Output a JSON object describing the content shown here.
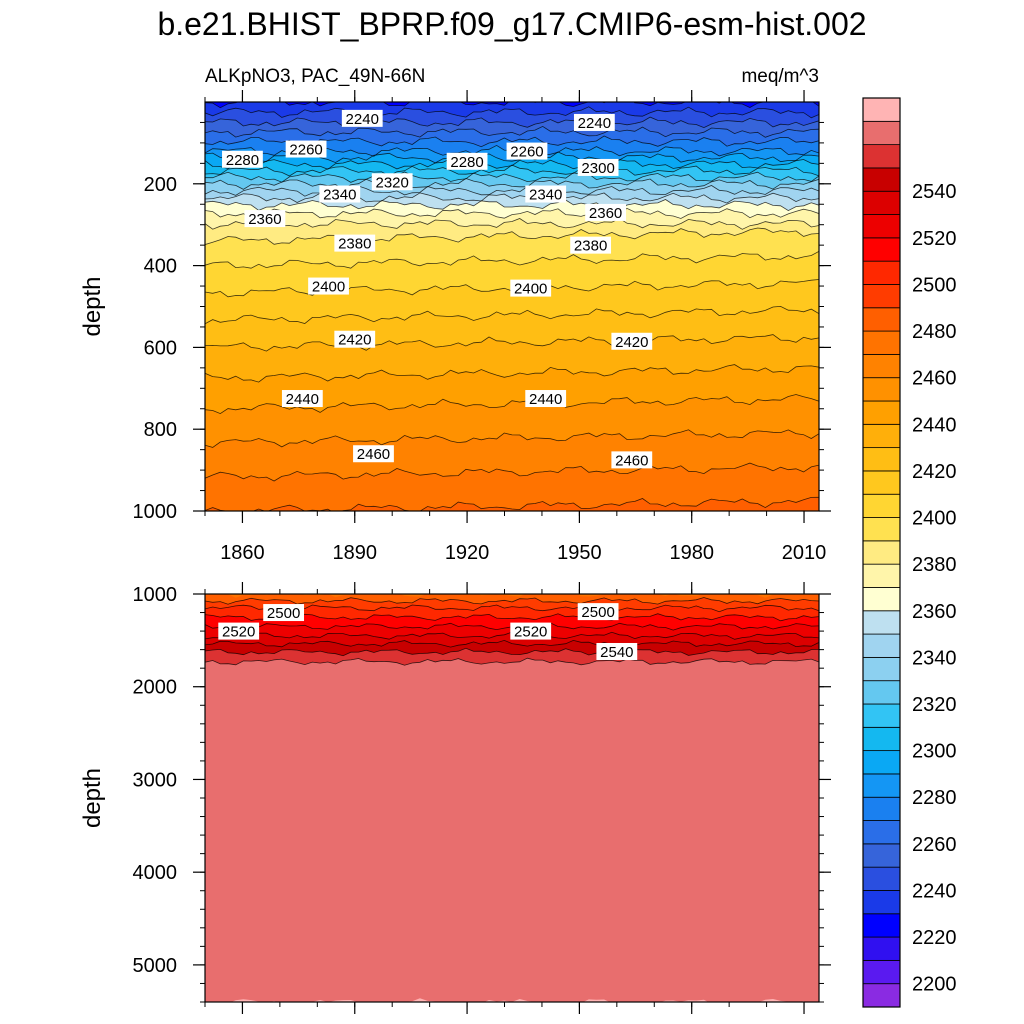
{
  "title": "b.e21.BHIST_BPRP.f09_g17.CMIP6-esm-hist.002",
  "chart_data": [
    {
      "type": "contour",
      "panel": "upper",
      "left_title": "ALKpNO3, PAC_49N-66N",
      "right_title": "meq/m^3",
      "ylabel": "depth",
      "xlabel": "",
      "xlim": [
        1850,
        2014
      ],
      "ylim": [
        1000,
        0
      ],
      "y_reversed": true,
      "x_ticks": [
        1860,
        1890,
        1920,
        1950,
        1980,
        2010
      ],
      "y_ticks": [
        200,
        400,
        600,
        800,
        1000
      ],
      "contour_interval": 10,
      "contour_profile": [
        {
          "depth": 0,
          "value": 2220
        },
        {
          "depth": 50,
          "value": 2240
        },
        {
          "depth": 120,
          "value": 2270
        },
        {
          "depth": 200,
          "value": 2320
        },
        {
          "depth": 260,
          "value": 2355
        },
        {
          "depth": 310,
          "value": 2375
        },
        {
          "depth": 400,
          "value": 2390
        },
        {
          "depth": 500,
          "value": 2405
        },
        {
          "depth": 600,
          "value": 2420
        },
        {
          "depth": 750,
          "value": 2440
        },
        {
          "depth": 900,
          "value": 2458
        },
        {
          "depth": 1000,
          "value": 2470
        }
      ],
      "contour_labels": [
        {
          "x": 1892,
          "depth": 40,
          "text": "2240"
        },
        {
          "x": 1954,
          "depth": 50,
          "text": "2240"
        },
        {
          "x": 1860,
          "depth": 140,
          "text": "2280"
        },
        {
          "x": 1877,
          "depth": 115,
          "text": "2260"
        },
        {
          "x": 1920,
          "depth": 145,
          "text": "2280"
        },
        {
          "x": 1936,
          "depth": 120,
          "text": "2260"
        },
        {
          "x": 1955,
          "depth": 160,
          "text": "2300"
        },
        {
          "x": 1900,
          "depth": 195,
          "text": "2320"
        },
        {
          "x": 1886,
          "depth": 225,
          "text": "2340"
        },
        {
          "x": 1941,
          "depth": 225,
          "text": "2340"
        },
        {
          "x": 1866,
          "depth": 285,
          "text": "2360"
        },
        {
          "x": 1957,
          "depth": 270,
          "text": "2360"
        },
        {
          "x": 1890,
          "depth": 345,
          "text": "2380"
        },
        {
          "x": 1953,
          "depth": 350,
          "text": "2380"
        },
        {
          "x": 1883,
          "depth": 450,
          "text": "2400"
        },
        {
          "x": 1937,
          "depth": 455,
          "text": "2400"
        },
        {
          "x": 1890,
          "depth": 580,
          "text": "2420"
        },
        {
          "x": 1964,
          "depth": 585,
          "text": "2420"
        },
        {
          "x": 1876,
          "depth": 725,
          "text": "2440"
        },
        {
          "x": 1941,
          "depth": 725,
          "text": "2440"
        },
        {
          "x": 1895,
          "depth": 860,
          "text": "2460"
        },
        {
          "x": 1964,
          "depth": 875,
          "text": "2460"
        }
      ]
    },
    {
      "type": "contour",
      "panel": "lower",
      "ylabel": "depth",
      "xlabel": "",
      "xlim": [
        1850,
        2014
      ],
      "ylim": [
        5400,
        1000
      ],
      "y_reversed": true,
      "y_ticks": [
        1000,
        2000,
        3000,
        4000,
        5000
      ],
      "contour_interval": 10,
      "contour_profile": [
        {
          "depth": 1000,
          "value": 2470
        },
        {
          "depth": 1150,
          "value": 2490
        },
        {
          "depth": 1300,
          "value": 2505
        },
        {
          "depth": 1450,
          "value": 2520
        },
        {
          "depth": 1580,
          "value": 2535
        },
        {
          "depth": 1700,
          "value": 2548
        },
        {
          "depth": 1760,
          "value": 2552
        },
        {
          "depth": 5400,
          "value": 2560
        }
      ],
      "contour_labels": [
        {
          "x": 1871,
          "depth": 1200,
          "text": "2500"
        },
        {
          "x": 1955,
          "depth": 1190,
          "text": "2500"
        },
        {
          "x": 1859,
          "depth": 1400,
          "text": "2520"
        },
        {
          "x": 1937,
          "depth": 1400,
          "text": "2520"
        },
        {
          "x": 1960,
          "depth": 1620,
          "text": "2540"
        }
      ]
    }
  ],
  "colorbar": {
    "labels": [
      "2200",
      "2220",
      "2240",
      "2260",
      "2280",
      "2300",
      "2320",
      "2340",
      "2360",
      "2380",
      "2400",
      "2420",
      "2440",
      "2460",
      "2480",
      "2500",
      "2520",
      "2540"
    ],
    "colors_bottom_to_top": [
      "#8a2be2",
      "#5a1af0",
      "#3010f0",
      "#0000ff",
      "#1a3ae8",
      "#2a4fe0",
      "#3664da",
      "#2a6ee8",
      "#1a80f0",
      "#1496f4",
      "#0aa8f4",
      "#14b8f0",
      "#32c4f4",
      "#64c8f0",
      "#8cd0f0",
      "#a0d4f0",
      "#bee0f0",
      "#ffffd2",
      "#fff5aa",
      "#ffeb82",
      "#ffe150",
      "#ffd632",
      "#ffc81e",
      "#ffbe14",
      "#ffaf0a",
      "#ffa000",
      "#ff9100",
      "#ff8200",
      "#ff7300",
      "#ff5f00",
      "#ff3c00",
      "#ff2800",
      "#ff0000",
      "#ed0000",
      "#dc0000",
      "#c80000",
      "#dc3232",
      "#e86e6e",
      "#ffb4b4"
    ]
  }
}
